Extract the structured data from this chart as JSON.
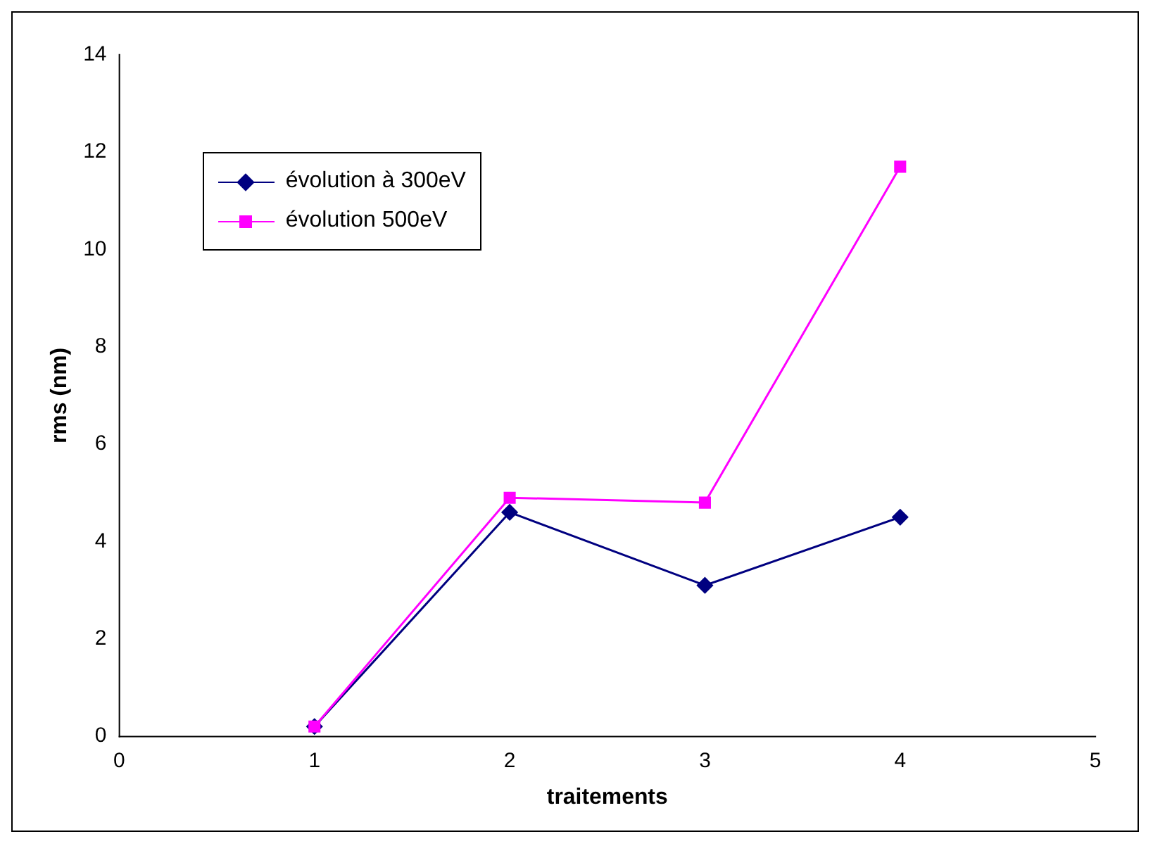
{
  "chart_data": {
    "type": "line",
    "xlabel": "traitements",
    "ylabel": "rms (nm)",
    "xlim": [
      0,
      5
    ],
    "xticks": [
      0,
      1,
      2,
      3,
      4,
      5
    ],
    "ylim": [
      0,
      14
    ],
    "yticks": [
      0,
      2,
      4,
      6,
      8,
      10,
      12,
      14
    ],
    "grid": false,
    "legend": "top left",
    "series": [
      {
        "name": "évolution à 300eV",
        "color": "#000080",
        "marker": "diamond",
        "x": [
          1,
          2,
          3,
          4
        ],
        "values": [
          0.2,
          4.6,
          3.1,
          4.5
        ]
      },
      {
        "name": "évolution 500eV",
        "color": "#ff00ff",
        "marker": "square",
        "x": [
          1,
          2,
          3,
          4
        ],
        "values": [
          0.2,
          4.9,
          4.8,
          11.7
        ]
      }
    ]
  }
}
